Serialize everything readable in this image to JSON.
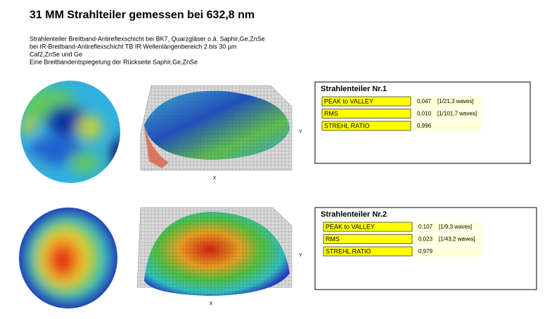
{
  "title": "31 MM Strahlteiler gemessen bei 632,8 nm",
  "description": [
    "Strahlenteiler  Breitband-Antireflexschicht  bei BK7, Quarzgläser o.ä. Saphir,Ge,ZnSe",
    "bei IR-Breitband-Antireflexschicht TB IR  Wellenlängenbereich 2 bis 30 µm",
    "Caf2,ZnSe und Ge",
    "Eine Breitbandentspiegelung der Rückseite Saphir,Ge,ZnSe"
  ],
  "plots": [
    {
      "x_label": "X",
      "y_label": "Y"
    },
    {
      "x_label": "X",
      "y_label": "Y"
    }
  ],
  "panels": [
    {
      "title": "Strahlenteiler Nr.1",
      "rows": [
        {
          "label": "PEAK to VALLEY",
          "value": "0,047",
          "waves": "[1/21,3 waves]"
        },
        {
          "label": "RMS",
          "value": "0,010",
          "waves": "[1/101,7 waves]"
        },
        {
          "label": "STREHL   RATIO",
          "value": "0,996"
        }
      ]
    },
    {
      "title": "Strahlenteiler Nr.2",
      "rows": [
        {
          "label": "PEAK to VALLEY",
          "value": "0,107",
          "waves": "[1/9,3 waves]"
        },
        {
          "label": "RMS",
          "value": "0,023",
          "waves": "[1/43,2 waves]"
        },
        {
          "label": "STREHL   RATIO",
          "value": "0,979"
        }
      ]
    }
  ]
}
